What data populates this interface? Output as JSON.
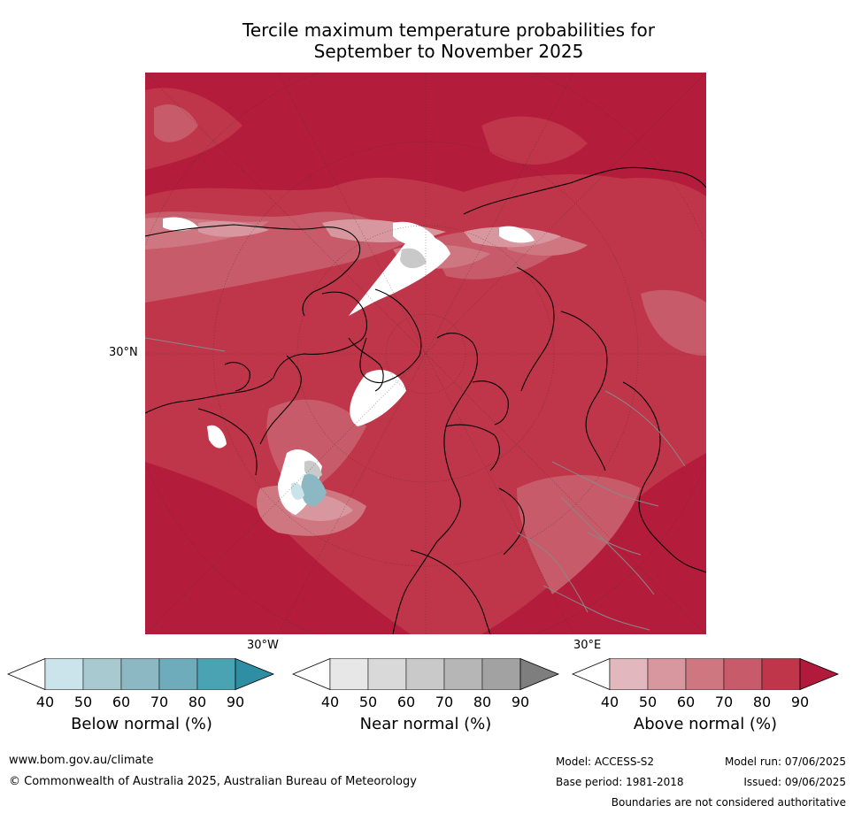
{
  "title": {
    "line1": "Tercile maximum temperature probabilities for",
    "line2": "September to November 2025"
  },
  "map": {
    "labels": {
      "lat_30n": "30°N",
      "lon_30w": "30°W",
      "lon_30e": "30°E"
    }
  },
  "colorbars": [
    {
      "label": "Below normal (%)",
      "ticks": [
        "40",
        "50",
        "60",
        "70",
        "80",
        "90"
      ],
      "colors": [
        "#ffffff",
        "#cbe3ea",
        "#a9c9d1",
        "#8bb8c3",
        "#6eabbb",
        "#4aa3b3",
        "#2e8fa4"
      ]
    },
    {
      "label": "Near normal (%)",
      "ticks": [
        "40",
        "50",
        "60",
        "70",
        "80",
        "90"
      ],
      "colors": [
        "#ffffff",
        "#e7e7e7",
        "#d9d9d9",
        "#c9c9c9",
        "#b6b6b6",
        "#a2a2a2",
        "#7e7e7e"
      ]
    },
    {
      "label": "Above normal (%)",
      "ticks": [
        "40",
        "50",
        "60",
        "70",
        "80",
        "90"
      ],
      "colors": [
        "#ffffff",
        "#e2b7bd",
        "#d8979f",
        "#cf7781",
        "#c85b69",
        "#bf3549",
        "#b11a3a"
      ]
    }
  ],
  "footer": {
    "url": "www.bom.gov.au/climate",
    "copyright": "© Commonwealth of Australia 2025, Australian Bureau of Meteorology",
    "model": "Model: ACCESS-S2",
    "base_period": "Base period: 1981-2018",
    "model_run": "Model run: 07/06/2025",
    "issued": "Issued: 09/06/2025",
    "disclaimer": "Boundaries are not considered authoritative"
  }
}
